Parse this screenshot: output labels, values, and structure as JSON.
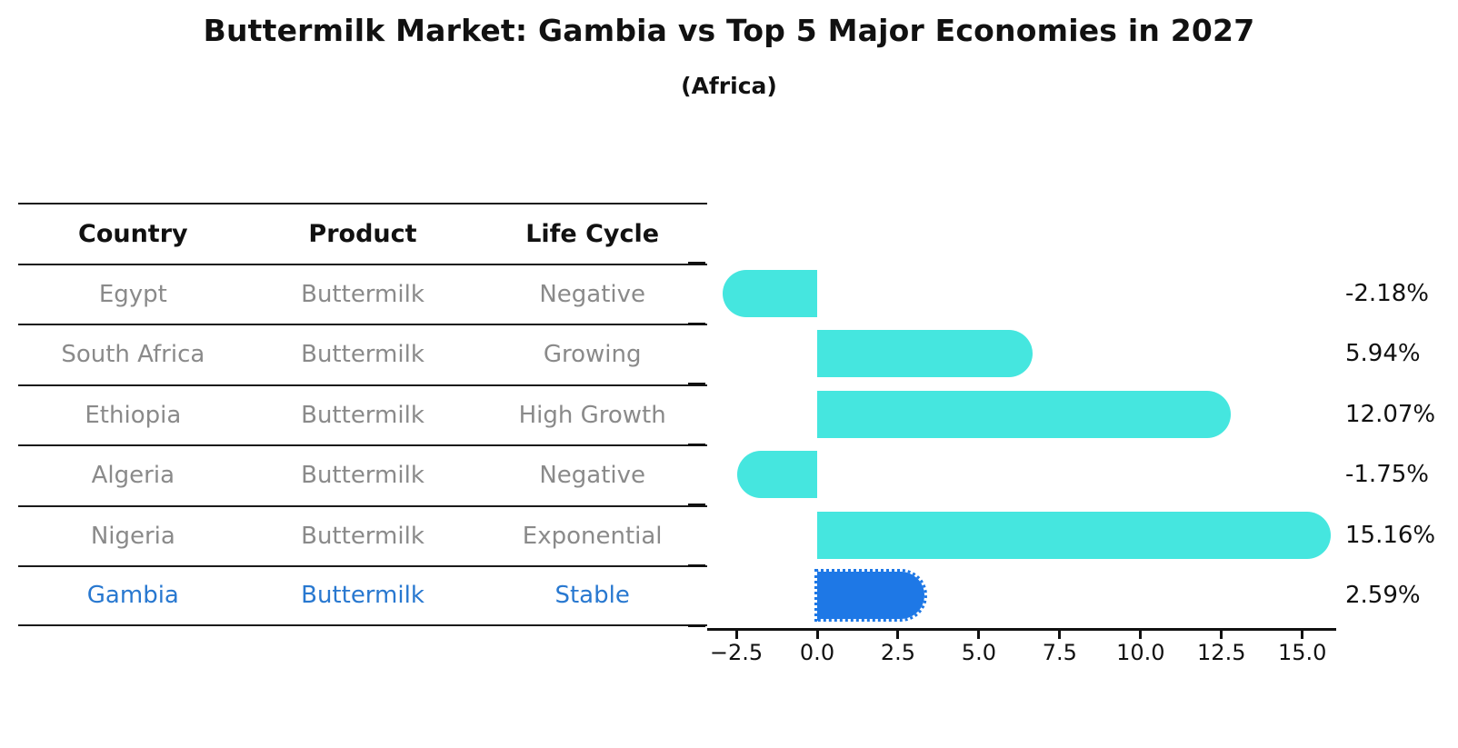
{
  "title": "Buttermilk Market: Gambia vs Top 5 Major Economies in 2027",
  "subtitle": "(Africa)",
  "colors": {
    "accent_text": "#2878d0",
    "text_gray": "#8a8a8a",
    "text_dark": "#111111"
  },
  "table": {
    "headers": [
      "Country",
      "Product",
      "Life Cycle"
    ],
    "rows": [
      {
        "country": "Egypt",
        "product": "Buttermilk",
        "life_cycle": "Negative",
        "highlight": false
      },
      {
        "country": "South Africa",
        "product": "Buttermilk",
        "life_cycle": "Growing",
        "highlight": false
      },
      {
        "country": "Ethiopia",
        "product": "Buttermilk",
        "life_cycle": "High Growth",
        "highlight": false
      },
      {
        "country": "Algeria",
        "product": "Buttermilk",
        "life_cycle": "Negative",
        "highlight": false
      },
      {
        "country": "Nigeria",
        "product": "Buttermilk",
        "life_cycle": "Exponential",
        "highlight": false
      },
      {
        "country": "Gambia",
        "product": "Buttermilk",
        "life_cycle": "Stable",
        "highlight": true
      }
    ]
  },
  "chart_data": {
    "type": "bar",
    "orientation": "horizontal",
    "title": "Buttermilk Market: Gambia vs Top 5 Major Economies in 2027 (Africa)",
    "categories": [
      "Egypt",
      "South Africa",
      "Ethiopia",
      "Algeria",
      "Nigeria",
      "Gambia"
    ],
    "values": [
      -2.18,
      5.94,
      12.07,
      -1.75,
      15.16,
      2.59
    ],
    "value_labels": [
      "-2.18%",
      "5.94%",
      "12.07%",
      "-1.75%",
      "15.16%",
      "2.59%"
    ],
    "x_ticks": [
      -2.5,
      0.0,
      2.5,
      5.0,
      7.5,
      10.0,
      12.5,
      15.0
    ],
    "x_tick_labels": [
      "−2.5",
      "0.0",
      "2.5",
      "5.0",
      "7.5",
      "10.0",
      "12.5",
      "15.0"
    ],
    "xlim": [
      -3.4,
      16.05
    ],
    "grid": false,
    "legend": false,
    "bar_color": "#45e6df",
    "highlight_bar_color": "#1e78e6",
    "highlight_category": "Gambia"
  }
}
